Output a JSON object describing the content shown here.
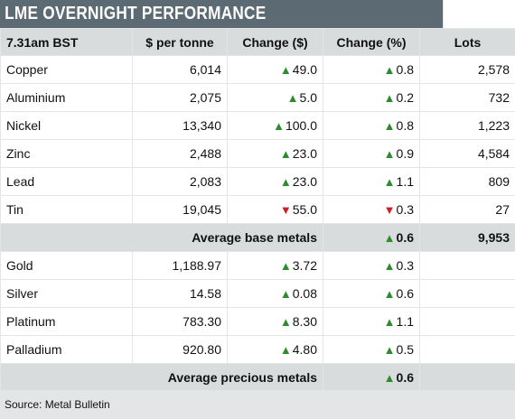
{
  "title": "LME OVERNIGHT PERFORMANCE",
  "header": {
    "time": "7.31am BST",
    "price": "$ per tonne",
    "change_abs": "Change ($)",
    "change_pct": "Change (%)",
    "lots": "Lots"
  },
  "base_metals": [
    {
      "name": "Copper",
      "price": "6,014",
      "change": "49.0",
      "change_dir": "up",
      "pct": "0.8",
      "pct_dir": "up",
      "lots": "2,578"
    },
    {
      "name": "Aluminium",
      "price": "2,075",
      "change": "5.0",
      "change_dir": "up",
      "pct": "0.2",
      "pct_dir": "up",
      "lots": "732"
    },
    {
      "name": "Nickel",
      "price": "13,340",
      "change": "100.0",
      "change_dir": "up",
      "pct": "0.8",
      "pct_dir": "up",
      "lots": "1,223"
    },
    {
      "name": "Zinc",
      "price": "2,488",
      "change": "23.0",
      "change_dir": "up",
      "pct": "0.9",
      "pct_dir": "up",
      "lots": "4,584"
    },
    {
      "name": "Lead",
      "price": "2,083",
      "change": "23.0",
      "change_dir": "up",
      "pct": "1.1",
      "pct_dir": "up",
      "lots": "809"
    },
    {
      "name": "Tin",
      "price": "19,045",
      "change": "55.0",
      "change_dir": "down",
      "pct": "0.3",
      "pct_dir": "down",
      "lots": "27"
    }
  ],
  "avg_base": {
    "label": "Average base metals",
    "pct": "0.6",
    "pct_dir": "up",
    "lots": "9,953"
  },
  "precious_metals": [
    {
      "name": "Gold",
      "price": "1,188.97",
      "change": "3.72",
      "change_dir": "up",
      "pct": "0.3",
      "pct_dir": "up"
    },
    {
      "name": "Silver",
      "price": "14.58",
      "change": "0.08",
      "change_dir": "up",
      "pct": "0.6",
      "pct_dir": "up"
    },
    {
      "name": "Platinum",
      "price": "783.30",
      "change": "8.30",
      "change_dir": "up",
      "pct": "1.1",
      "pct_dir": "up"
    },
    {
      "name": "Palladium",
      "price": "920.80",
      "change": "4.80",
      "change_dir": "up",
      "pct": "0.5",
      "pct_dir": "up"
    }
  ],
  "avg_precious": {
    "label": "Average precious metals",
    "pct": "0.6",
    "pct_dir": "up"
  },
  "source": "Source: Metal Bulletin",
  "colors": {
    "up": "#2e8b2e",
    "down": "#cc1f1f",
    "title_bg": "#5c6a73",
    "band": "#d9dcdd"
  }
}
